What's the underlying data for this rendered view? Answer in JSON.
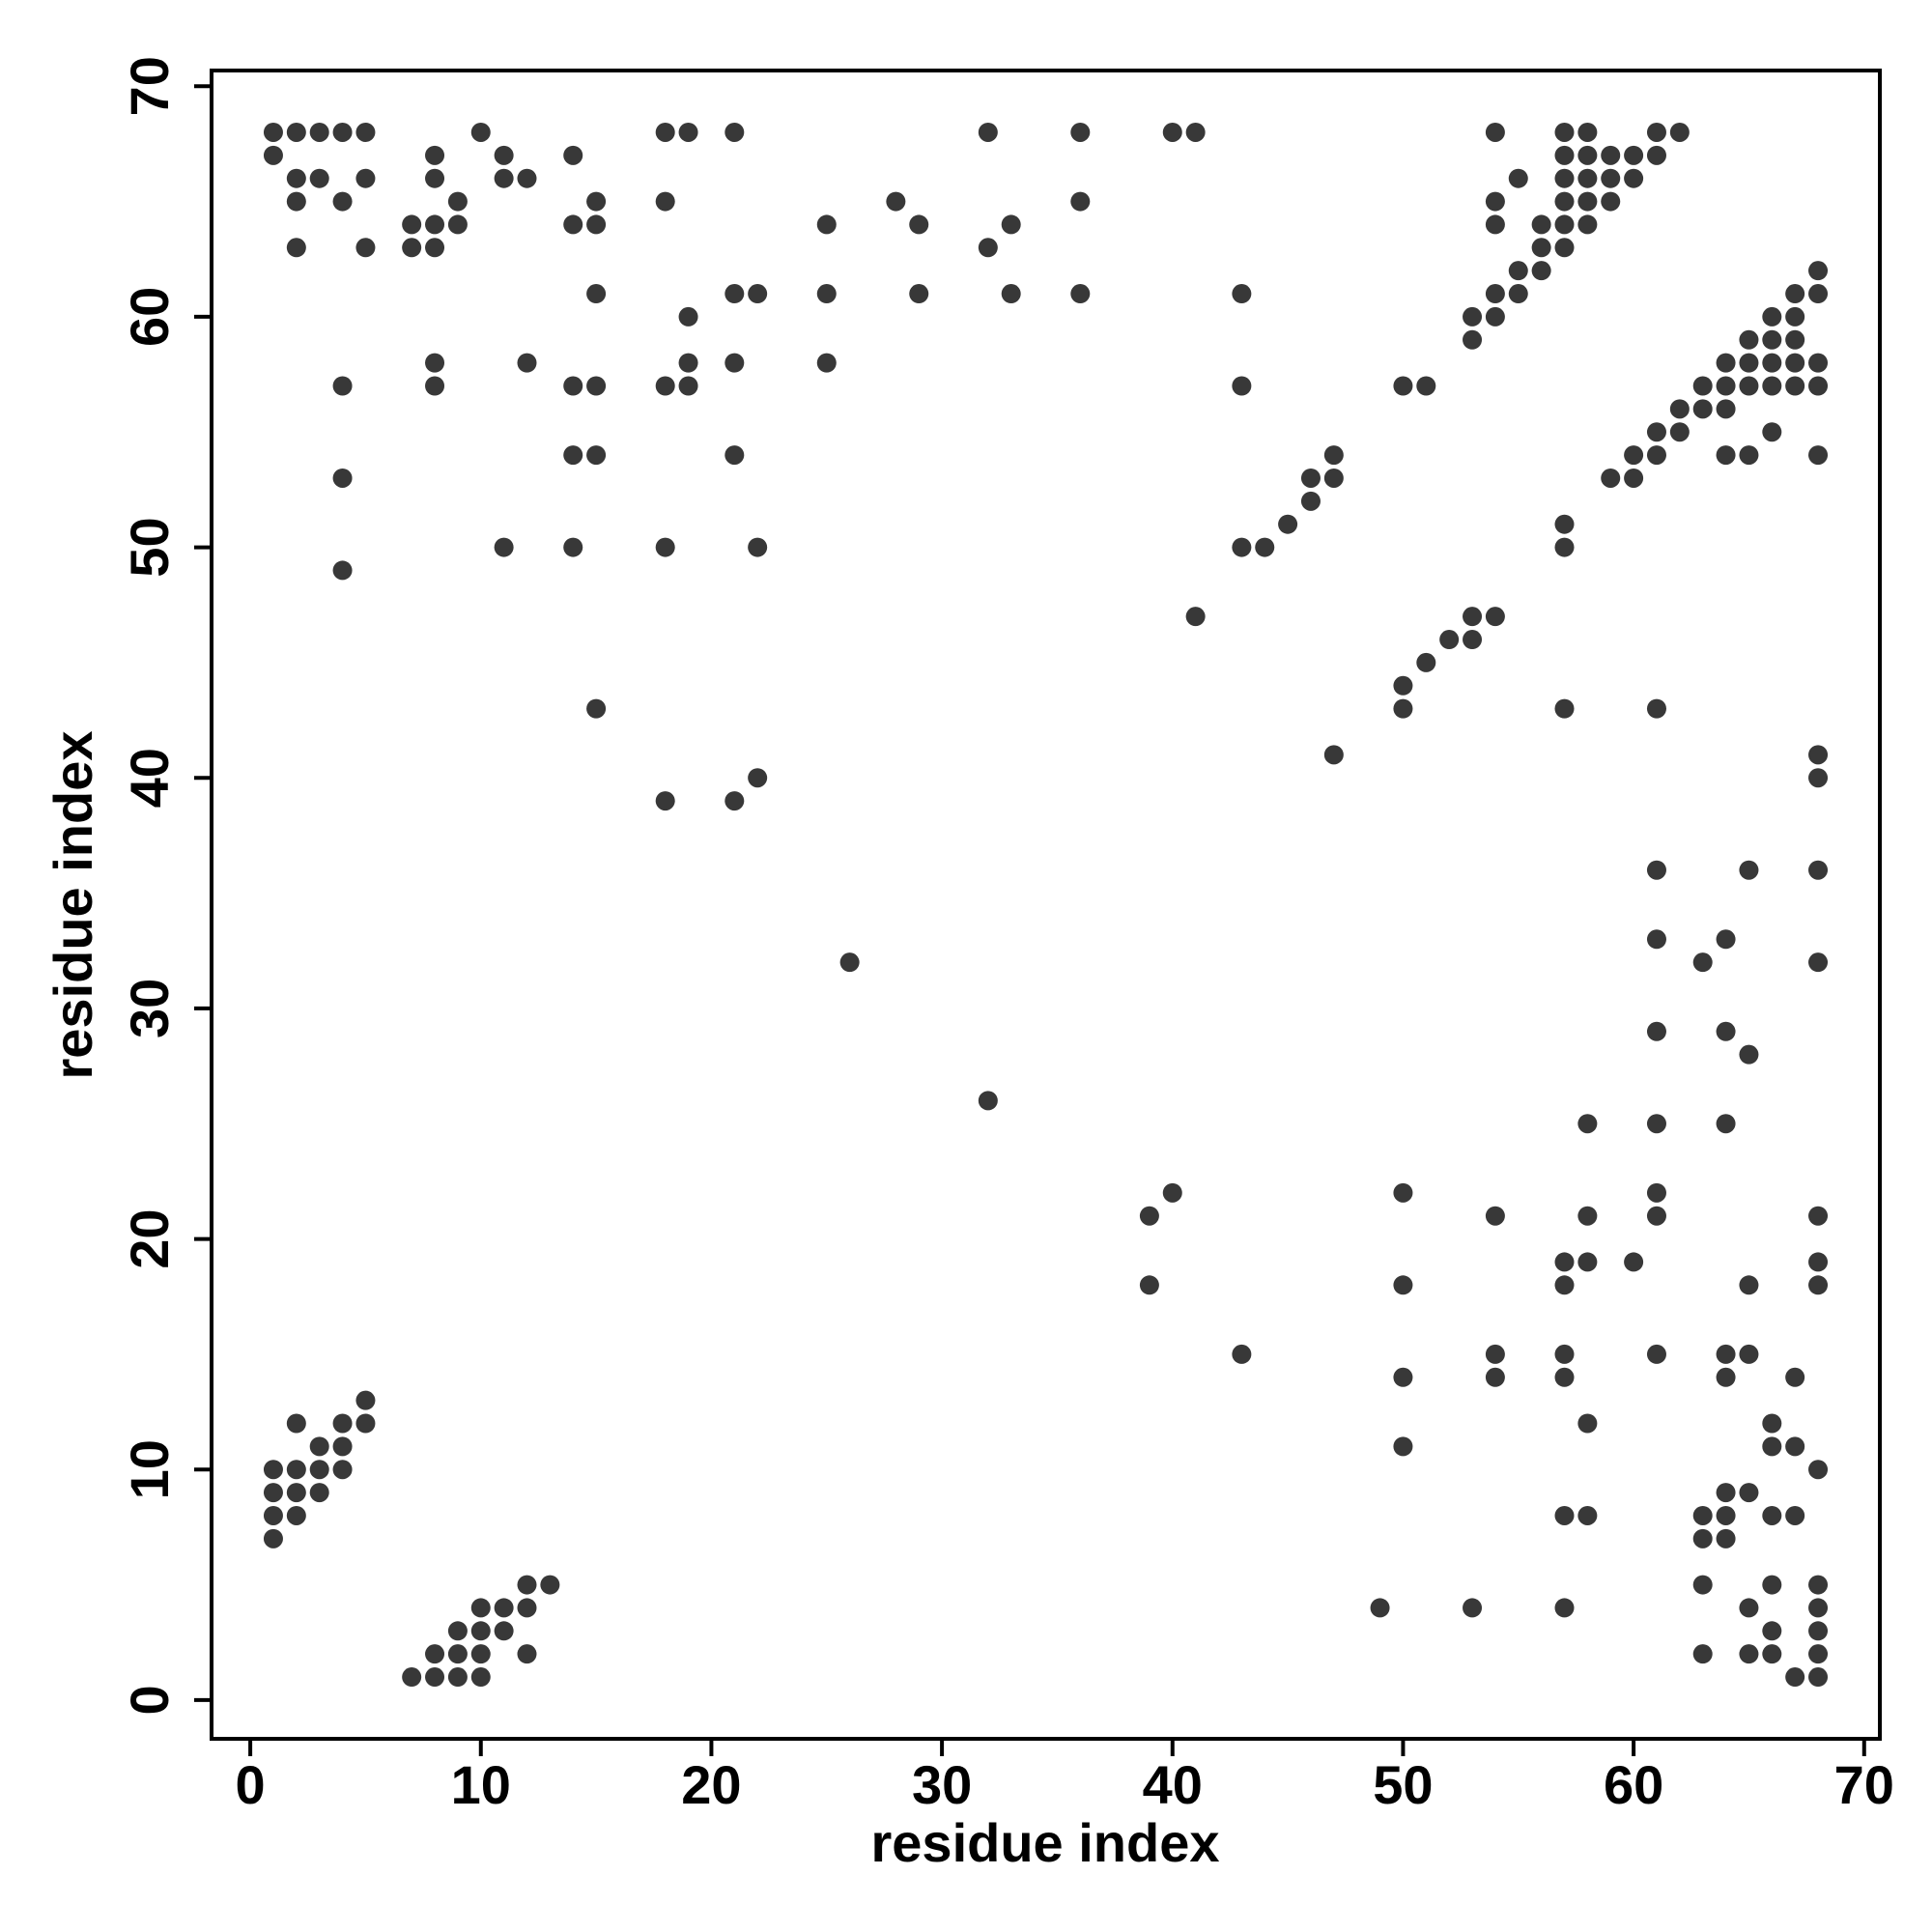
{
  "chart_data": {
    "type": "scatter",
    "x_label": "residue index",
    "y_label": "residue index",
    "color": "#383838",
    "xlim": [
      -1.68,
      70.68
    ],
    "ylim": [
      -1.68,
      70.68
    ],
    "xticks": [
      0,
      10,
      20,
      30,
      40,
      50,
      60,
      70
    ],
    "yticks": [
      0,
      10,
      20,
      30,
      40,
      50,
      60,
      70
    ],
    "x": [
      1,
      2,
      3,
      4,
      5,
      10,
      18,
      19,
      21,
      32,
      36,
      40,
      41,
      54,
      57,
      58,
      61,
      62,
      1,
      8,
      11,
      14,
      57,
      58,
      59,
      60,
      61,
      2,
      3,
      5,
      8,
      11,
      12,
      55,
      57,
      58,
      59,
      60,
      2,
      4,
      9,
      15,
      18,
      28,
      36,
      54,
      57,
      58,
      59,
      7,
      8,
      9,
      14,
      15,
      25,
      29,
      33,
      54,
      56,
      57,
      58,
      2,
      5,
      7,
      8,
      32,
      56,
      57,
      55,
      56,
      68,
      15,
      21,
      22,
      25,
      29,
      33,
      36,
      43,
      54,
      55,
      67,
      68,
      19,
      53,
      54,
      66,
      67,
      53,
      65,
      66,
      67,
      8,
      12,
      19,
      21,
      25,
      64,
      65,
      66,
      67,
      68,
      4,
      8,
      14,
      15,
      18,
      19,
      43,
      50,
      51,
      63,
      64,
      65,
      66,
      67,
      68,
      62,
      63,
      64,
      61,
      62,
      66,
      14,
      15,
      21,
      47,
      60,
      61,
      64,
      65,
      68,
      4,
      46,
      47,
      59,
      60,
      46,
      45,
      57,
      11,
      14,
      18,
      22,
      43,
      44,
      57,
      4,
      41,
      53,
      54,
      52,
      53,
      51,
      50,
      15,
      50,
      57,
      61,
      47,
      68,
      22,
      68,
      18,
      21,
      61,
      65,
      68,
      61,
      64,
      26,
      63,
      68,
      61,
      64,
      65,
      32,
      58,
      61,
      64,
      40,
      50,
      61,
      39,
      54,
      58,
      61,
      68,
      57,
      58,
      60,
      68,
      39,
      50,
      57,
      65,
      68,
      43,
      54,
      57,
      61,
      64,
      65,
      50,
      54,
      57,
      64,
      67,
      5,
      2,
      4,
      5,
      58,
      66,
      3,
      4,
      50,
      66,
      67,
      1,
      2,
      3,
      4,
      68,
      1,
      2,
      3,
      64,
      65,
      1,
      2,
      57,
      58,
      63,
      64,
      66,
      67,
      1,
      63,
      64,
      12,
      13,
      63,
      66,
      68,
      10,
      11,
      12,
      49,
      53,
      57,
      65,
      68,
      9,
      10,
      11,
      66,
      68,
      8,
      9,
      10,
      12,
      63,
      65,
      66,
      68,
      7,
      8,
      9,
      10,
      67,
      68
    ],
    "values": [
      68,
      68,
      68,
      68,
      68,
      68,
      68,
      68,
      68,
      68,
      68,
      68,
      68,
      68,
      68,
      68,
      68,
      68,
      67,
      67,
      67,
      67,
      67,
      67,
      67,
      67,
      67,
      66,
      66,
      66,
      66,
      66,
      66,
      66,
      66,
      66,
      66,
      66,
      65,
      65,
      65,
      65,
      65,
      65,
      65,
      65,
      65,
      65,
      65,
      64,
      64,
      64,
      64,
      64,
      64,
      64,
      64,
      64,
      64,
      64,
      64,
      63,
      63,
      63,
      63,
      63,
      63,
      63,
      62,
      62,
      62,
      61,
      61,
      61,
      61,
      61,
      61,
      61,
      61,
      61,
      61,
      61,
      61,
      60,
      60,
      60,
      60,
      60,
      59,
      59,
      59,
      59,
      58,
      58,
      58,
      58,
      58,
      58,
      58,
      58,
      58,
      58,
      57,
      57,
      57,
      57,
      57,
      57,
      57,
      57,
      57,
      57,
      57,
      57,
      57,
      57,
      57,
      56,
      56,
      56,
      55,
      55,
      55,
      54,
      54,
      54,
      54,
      54,
      54,
      54,
      54,
      54,
      53,
      53,
      53,
      53,
      53,
      52,
      51,
      51,
      50,
      50,
      50,
      50,
      50,
      50,
      50,
      49,
      47,
      47,
      47,
      46,
      46,
      45,
      44,
      43,
      43,
      43,
      43,
      41,
      41,
      40,
      40,
      39,
      39,
      36,
      36,
      36,
      33,
      33,
      32,
      32,
      32,
      29,
      29,
      28,
      26,
      25,
      25,
      25,
      22,
      22,
      22,
      21,
      21,
      21,
      21,
      21,
      19,
      19,
      19,
      19,
      18,
      18,
      18,
      18,
      18,
      15,
      15,
      15,
      15,
      15,
      15,
      14,
      14,
      14,
      14,
      14,
      13,
      12,
      12,
      12,
      12,
      12,
      11,
      11,
      11,
      11,
      11,
      10,
      10,
      10,
      10,
      10,
      9,
      9,
      9,
      9,
      9,
      8,
      8,
      8,
      8,
      8,
      8,
      8,
      8,
      7,
      7,
      7,
      5,
      5,
      5,
      5,
      5,
      4,
      4,
      4,
      4,
      4,
      4,
      4,
      4,
      3,
      3,
      3,
      3,
      3,
      2,
      2,
      2,
      2,
      2,
      2,
      2,
      2,
      1,
      1,
      1,
      1,
      1,
      1
    ]
  }
}
